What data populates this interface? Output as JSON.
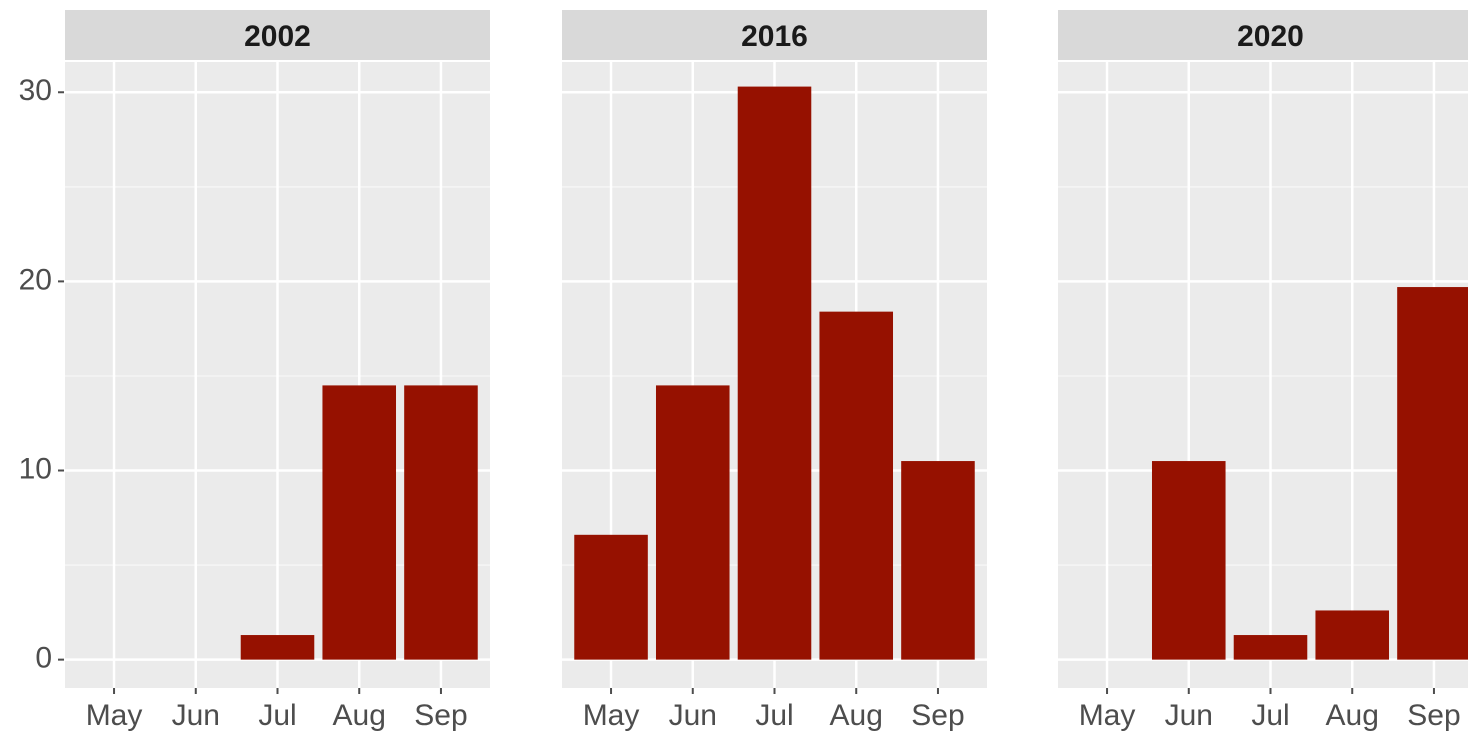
{
  "chart_data": [
    {
      "type": "bar",
      "title": "2002",
      "categories": [
        "May",
        "Jun",
        "Jul",
        "Aug",
        "Sep"
      ],
      "values": [
        0,
        0,
        1.3,
        14.5,
        14.5
      ],
      "color": "#961100",
      "ylim": [
        -1.5,
        31.6
      ],
      "yticks": [
        0,
        10,
        20,
        30
      ],
      "grid": true
    },
    {
      "type": "bar",
      "title": "2016",
      "categories": [
        "May",
        "Jun",
        "Jul",
        "Aug",
        "Sep"
      ],
      "values": [
        6.6,
        14.5,
        30.3,
        18.4,
        10.5
      ],
      "color": "#961100",
      "ylim": [
        -1.5,
        31.6
      ],
      "grid": true
    },
    {
      "type": "bar",
      "title": "2020",
      "categories": [
        "May",
        "Jun",
        "Jul",
        "Aug",
        "Sep"
      ],
      "values": [
        0,
        10.5,
        1.3,
        2.6,
        19.7
      ],
      "color": "#961100",
      "ylim": [
        -1.5,
        31.6
      ],
      "grid": true
    }
  ]
}
